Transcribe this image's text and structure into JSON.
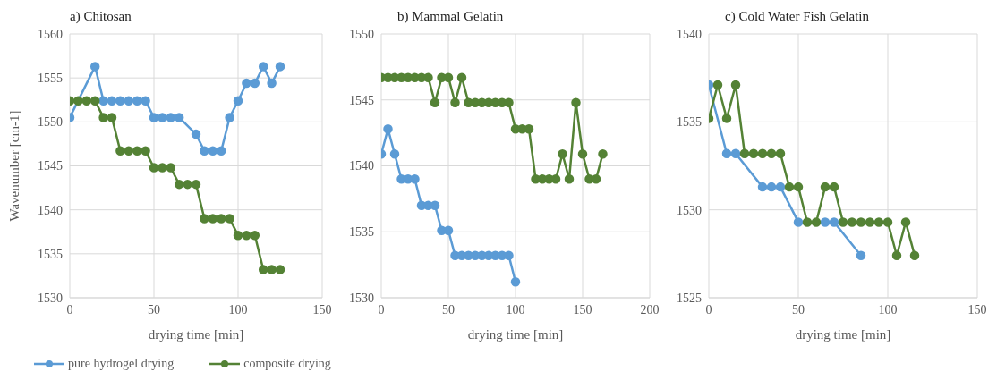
{
  "chart_data": [
    {
      "type": "line",
      "title": "a) Chitosan",
      "xlabel": "drying time [min]",
      "ylabel": "Wavenumber [cm-1]",
      "xlim": [
        0,
        150
      ],
      "xticks": [
        0,
        50,
        100,
        150
      ],
      "ylim": [
        1530,
        1560
      ],
      "yticks": [
        1530,
        1535,
        1540,
        1545,
        1550,
        1555,
        1560
      ],
      "grid": true,
      "marker": "circle",
      "legend": "bottom",
      "series": [
        {
          "name": "pure hydrogel drying",
          "color": "#5b9bd5",
          "x": [
            0,
            15,
            20,
            25,
            30,
            35,
            40,
            45,
            50,
            55,
            60,
            65,
            75,
            80,
            85,
            90,
            95,
            100,
            105,
            110,
            115,
            120,
            125
          ],
          "values": [
            1550.5,
            1556.3,
            1552.4,
            1552.4,
            1552.4,
            1552.4,
            1552.4,
            1552.4,
            1550.5,
            1550.5,
            1550.5,
            1550.5,
            1548.6,
            1546.7,
            1546.7,
            1546.7,
            1550.5,
            1552.4,
            1554.4,
            1554.4,
            1556.3,
            1554.4,
            1556.3
          ]
        },
        {
          "name": "composite drying",
          "color": "#548235",
          "x": [
            0,
            5,
            10,
            15,
            20,
            25,
            30,
            35,
            40,
            45,
            50,
            55,
            60,
            65,
            70,
            75,
            80,
            85,
            90,
            95,
            100,
            105,
            110,
            115,
            120,
            125
          ],
          "values": [
            1552.4,
            1552.4,
            1552.4,
            1552.4,
            1550.5,
            1550.5,
            1546.7,
            1546.7,
            1546.7,
            1546.7,
            1544.8,
            1544.8,
            1544.8,
            1542.9,
            1542.9,
            1542.9,
            1539.0,
            1539.0,
            1539.0,
            1539.0,
            1537.1,
            1537.1,
            1537.1,
            1533.2,
            1533.2,
            1533.2
          ]
        }
      ]
    },
    {
      "type": "line",
      "title": "b) Mammal Gelatin",
      "xlabel": "drying time [min]",
      "xlim": [
        0,
        200
      ],
      "xticks": [
        0,
        50,
        100,
        150,
        200
      ],
      "ylim": [
        1530,
        1550
      ],
      "yticks": [
        1530,
        1535,
        1540,
        1545,
        1550
      ],
      "grid": true,
      "marker": "circle",
      "series": [
        {
          "color": "#5b9bd5",
          "x": [
            0,
            5,
            10,
            15,
            20,
            25,
            30,
            35,
            40,
            45,
            50,
            55,
            60,
            65,
            70,
            75,
            80,
            85,
            90,
            95,
            100
          ],
          "values": [
            1540.9,
            1542.8,
            1540.9,
            1539.0,
            1539.0,
            1539.0,
            1537.0,
            1537.0,
            1537.0,
            1535.1,
            1535.1,
            1533.2,
            1533.2,
            1533.2,
            1533.2,
            1533.2,
            1533.2,
            1533.2,
            1533.2,
            1533.2,
            1531.2
          ]
        },
        {
          "color": "#548235",
          "x": [
            0,
            5,
            10,
            15,
            20,
            25,
            30,
            35,
            40,
            45,
            50,
            55,
            60,
            65,
            70,
            75,
            80,
            85,
            90,
            95,
            100,
            105,
            110,
            115,
            120,
            125,
            130,
            135,
            140,
            145,
            150,
            155,
            160,
            165
          ],
          "values": [
            1546.7,
            1546.7,
            1546.7,
            1546.7,
            1546.7,
            1546.7,
            1546.7,
            1546.7,
            1544.8,
            1546.7,
            1546.7,
            1544.8,
            1546.7,
            1544.8,
            1544.8,
            1544.8,
            1544.8,
            1544.8,
            1544.8,
            1544.8,
            1542.8,
            1542.8,
            1542.8,
            1539.0,
            1539.0,
            1539.0,
            1539.0,
            1540.9,
            1539.0,
            1544.8,
            1540.9,
            1539.0,
            1539.0,
            1540.9
          ]
        }
      ]
    },
    {
      "type": "line",
      "title": "c) Cold Water Fish Gelatin",
      "xlabel": "drying time [min]",
      "xlim": [
        0,
        150
      ],
      "xticks": [
        0,
        50,
        100,
        150
      ],
      "ylim": [
        1525,
        1540
      ],
      "yticks": [
        1525,
        1530,
        1535,
        1540
      ],
      "grid": true,
      "marker": "circle",
      "series": [
        {
          "color": "#5b9bd5",
          "x": [
            0,
            10,
            15,
            30,
            35,
            40,
            50,
            65,
            70,
            85
          ],
          "values": [
            1537.1,
            1533.2,
            1533.2,
            1531.3,
            1531.3,
            1531.3,
            1529.3,
            1529.3,
            1529.3,
            1527.4
          ]
        },
        {
          "color": "#548235",
          "x": [
            0,
            5,
            10,
            15,
            20,
            25,
            30,
            35,
            40,
            45,
            50,
            55,
            60,
            65,
            70,
            75,
            80,
            85,
            90,
            95,
            100,
            105,
            110,
            115
          ],
          "values": [
            1535.2,
            1537.1,
            1535.2,
            1537.1,
            1533.2,
            1533.2,
            1533.2,
            1533.2,
            1533.2,
            1531.3,
            1531.3,
            1529.3,
            1529.3,
            1531.3,
            1531.3,
            1529.3,
            1529.3,
            1529.3,
            1529.3,
            1529.3,
            1529.3,
            1527.4,
            1529.3,
            1527.4
          ]
        }
      ]
    }
  ]
}
